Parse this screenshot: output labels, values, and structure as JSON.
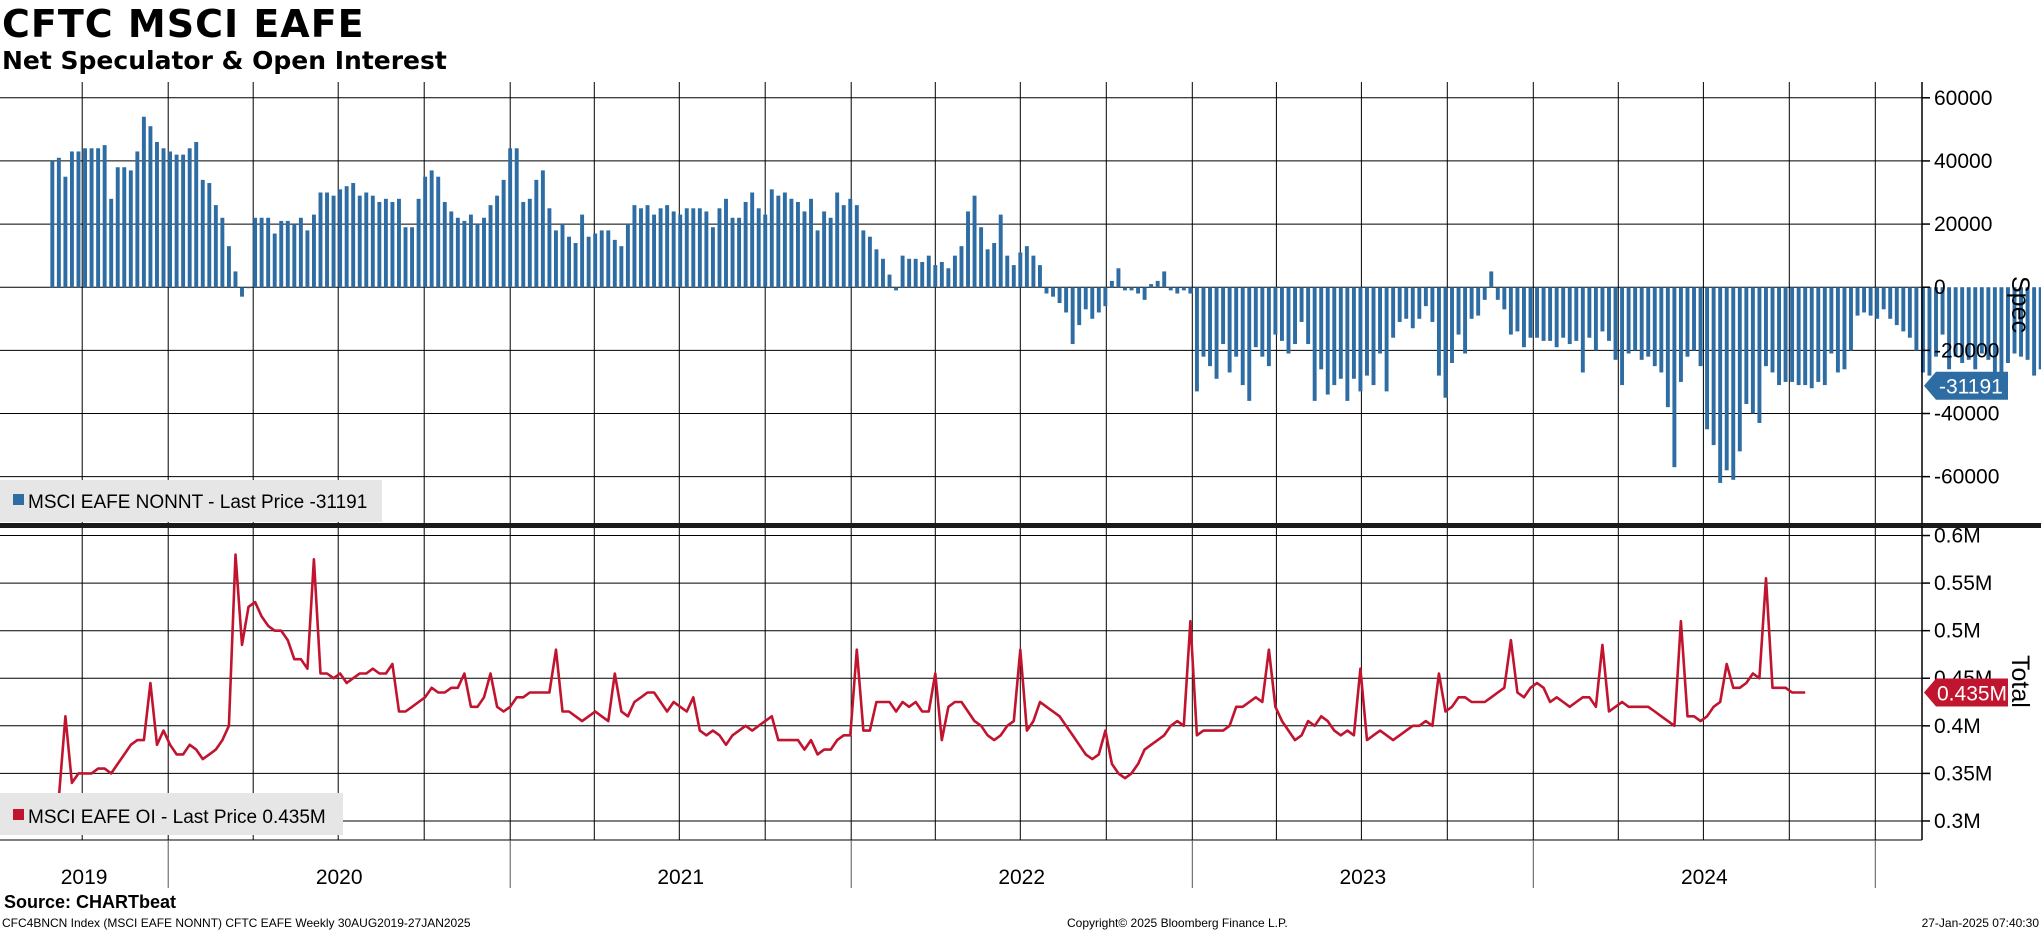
{
  "header": {
    "title": "CFTC MSCI EAFE",
    "subtitle": "Net Speculator & Open Interest"
  },
  "footer": {
    "source": "Source: CHARTbeat",
    "left": "CFC4BNCN Index (MSCI EAFE NONNT) CFTC EAFE  Weekly 30AUG2019-27JAN2025",
    "mid": "Copyright© 2025 Bloomberg Finance L.P.",
    "right": "27-Jan-2025 07:40:30"
  },
  "chart_data": [
    {
      "type": "bar",
      "axis_title": "Spec",
      "legend": "MSCI EAFE NONNT  - Last Price -31191",
      "last_value": -31191,
      "last_value_label": "-31191",
      "color": "#2e6da4",
      "ylim": [
        -75000,
        65000
      ],
      "yticks": [
        60000,
        40000,
        20000,
        0,
        -20000,
        -40000,
        -60000
      ],
      "ytick_labels": [
        "60000",
        "40000",
        "20000",
        "0",
        "-20000",
        "-40000",
        "-60000"
      ],
      "x_start": "2019-08-30",
      "x_end": "2025-01-27",
      "frequency": "weekly",
      "values": [
        40000,
        41000,
        35000,
        43000,
        43000,
        44000,
        44000,
        44000,
        45000,
        28000,
        38000,
        38000,
        37000,
        43000,
        54000,
        51000,
        46000,
        44000,
        43000,
        42000,
        42000,
        44000,
        46000,
        34000,
        33000,
        26000,
        22000,
        13000,
        5000,
        -3000,
        0,
        22000,
        22000,
        22000,
        17000,
        21000,
        21000,
        20000,
        22000,
        18000,
        23000,
        30000,
        30000,
        29000,
        31000,
        32000,
        33000,
        29000,
        30000,
        29000,
        27000,
        28000,
        27000,
        28000,
        19000,
        19000,
        28000,
        35000,
        37000,
        35000,
        27000,
        24000,
        22000,
        21000,
        23000,
        20000,
        22000,
        26000,
        29000,
        34000,
        44000,
        44000,
        27000,
        28000,
        34000,
        37000,
        25000,
        18000,
        20000,
        16000,
        14000,
        23000,
        16000,
        17000,
        18000,
        18000,
        15000,
        13000,
        20000,
        26000,
        25000,
        26000,
        23000,
        25000,
        26000,
        24000,
        23000,
        25000,
        25000,
        25000,
        24000,
        19000,
        25000,
        28000,
        22000,
        22000,
        27000,
        30000,
        25000,
        23000,
        31000,
        29000,
        30000,
        28000,
        27000,
        24000,
        28000,
        18000,
        24000,
        22000,
        30000,
        26000,
        28000,
        26000,
        18000,
        16000,
        12000,
        9000,
        4000,
        -1000,
        10000,
        9000,
        9000,
        8000,
        10000,
        7000,
        8000,
        6000,
        10000,
        13000,
        24000,
        29000,
        19000,
        12000,
        14000,
        23000,
        10000,
        7000,
        11000,
        13000,
        10000,
        7000,
        -2000,
        -3000,
        -5000,
        -8000,
        -18000,
        -12000,
        -7000,
        -10000,
        -8000,
        -6000,
        2000,
        6000,
        -1000,
        -1000,
        -2000,
        -4000,
        1000,
        2000,
        5000,
        -1000,
        -2000,
        -1000,
        -2000,
        -33000,
        -22000,
        -25000,
        -29000,
        -18000,
        -27000,
        -22000,
        -31000,
        -36000,
        -19000,
        -22000,
        -25000,
        -15000,
        -17000,
        -21000,
        -18000,
        -11000,
        -18000,
        -36000,
        -26000,
        -34000,
        -31000,
        -29000,
        -36000,
        -29000,
        -33000,
        -28000,
        -31000,
        -21000,
        -33000,
        -16000,
        -11000,
        -10000,
        -13000,
        -10000,
        -6000,
        -11000,
        -28000,
        -35000,
        -24000,
        -15000,
        -21000,
        -10000,
        -9000,
        -4000,
        5000,
        -4000,
        -7000,
        -15000,
        -14000,
        -19000,
        -16000,
        -16000,
        -17000,
        -17000,
        -19000,
        -16000,
        -18000,
        -17000,
        -27000,
        -16000,
        -20000,
        -14000,
        -17000,
        -23000,
        -31000,
        -21000,
        -20000,
        -23000,
        -22000,
        -25000,
        -27000,
        -38000,
        -57000,
        -30000,
        -22000,
        -20000,
        -25000,
        -45000,
        -50000,
        -62000,
        -58000,
        -61000,
        -52000,
        -37000,
        -40000,
        -43000,
        -25000,
        -27000,
        -31000,
        -30000,
        -30000,
        -31000,
        -31000,
        -32000,
        -30000,
        -31000,
        -21000,
        -27000,
        -26000,
        -20000,
        -9000,
        -8000,
        -9000,
        -10000,
        -7000,
        -10000,
        -12000,
        -14000,
        -16000,
        -20000,
        -27000,
        -28000,
        -22000,
        -15000,
        -26000,
        -22000,
        -24000,
        -23000,
        -26000,
        -21000,
        -23000,
        -28000,
        -27000,
        -24000,
        -21000,
        -22000,
        -23000,
        -28000,
        -26000,
        -28000,
        -29000,
        -31000,
        -30000,
        -38000,
        -38000,
        -31000,
        -27000,
        -35000,
        -41000,
        -32000,
        -25000,
        -27000,
        -29000,
        -32000,
        -35000,
        -33000,
        -36000,
        -36000,
        -48000,
        -32000,
        -31000,
        -32000,
        -31000,
        -28000,
        -32000,
        -31000,
        -29000,
        -27000,
        -27000,
        -31191
      ]
    },
    {
      "type": "line",
      "axis_title": "Total",
      "legend": "MSCI EAFE OI  - Last Price 0.435M",
      "last_value": 0.435,
      "last_value_label": "0.435M",
      "unit": "M",
      "color": "#c0142f",
      "ylim": [
        0.28,
        0.61
      ],
      "yticks": [
        0.6,
        0.55,
        0.5,
        0.45,
        0.4,
        0.35,
        0.3
      ],
      "ytick_labels": [
        "0.6M",
        "0.55M",
        "0.5M",
        "0.45M",
        "0.4M",
        "0.35M",
        "0.3M"
      ],
      "x_start": "2019-08-30",
      "x_end": "2025-01-27",
      "frequency": "weekly",
      "values": [
        0.325,
        0.325,
        0.41,
        0.34,
        0.35,
        0.35,
        0.35,
        0.355,
        0.355,
        0.35,
        0.36,
        0.37,
        0.38,
        0.385,
        0.385,
        0.445,
        0.38,
        0.395,
        0.38,
        0.37,
        0.37,
        0.38,
        0.375,
        0.365,
        0.37,
        0.375,
        0.385,
        0.4,
        0.58,
        0.485,
        0.525,
        0.53,
        0.515,
        0.505,
        0.5,
        0.5,
        0.49,
        0.47,
        0.47,
        0.46,
        0.575,
        0.455,
        0.455,
        0.45,
        0.455,
        0.445,
        0.45,
        0.455,
        0.455,
        0.46,
        0.455,
        0.455,
        0.465,
        0.415,
        0.415,
        0.42,
        0.425,
        0.43,
        0.44,
        0.435,
        0.435,
        0.44,
        0.44,
        0.455,
        0.42,
        0.42,
        0.43,
        0.455,
        0.42,
        0.415,
        0.42,
        0.43,
        0.43,
        0.435,
        0.435,
        0.435,
        0.435,
        0.48,
        0.415,
        0.415,
        0.41,
        0.405,
        0.41,
        0.415,
        0.41,
        0.405,
        0.455,
        0.415,
        0.41,
        0.425,
        0.43,
        0.435,
        0.435,
        0.425,
        0.415,
        0.425,
        0.42,
        0.415,
        0.43,
        0.395,
        0.39,
        0.395,
        0.39,
        0.38,
        0.39,
        0.395,
        0.4,
        0.395,
        0.4,
        0.405,
        0.41,
        0.385,
        0.385,
        0.385,
        0.385,
        0.375,
        0.385,
        0.37,
        0.375,
        0.375,
        0.385,
        0.39,
        0.39,
        0.48,
        0.395,
        0.395,
        0.425,
        0.425,
        0.425,
        0.415,
        0.425,
        0.42,
        0.425,
        0.415,
        0.415,
        0.455,
        0.385,
        0.42,
        0.425,
        0.425,
        0.415,
        0.405,
        0.4,
        0.39,
        0.385,
        0.39,
        0.4,
        0.405,
        0.48,
        0.395,
        0.405,
        0.425,
        0.42,
        0.415,
        0.41,
        0.4,
        0.39,
        0.38,
        0.37,
        0.365,
        0.37,
        0.395,
        0.36,
        0.35,
        0.345,
        0.35,
        0.36,
        0.375,
        0.38,
        0.385,
        0.39,
        0.4,
        0.405,
        0.4,
        0.51,
        0.39,
        0.395,
        0.395,
        0.395,
        0.395,
        0.4,
        0.42,
        0.42,
        0.425,
        0.43,
        0.425,
        0.48,
        0.42,
        0.405,
        0.395,
        0.385,
        0.39,
        0.405,
        0.4,
        0.41,
        0.405,
        0.395,
        0.39,
        0.395,
        0.39,
        0.46,
        0.385,
        0.39,
        0.395,
        0.39,
        0.385,
        0.39,
        0.395,
        0.4,
        0.4,
        0.405,
        0.4,
        0.455,
        0.415,
        0.42,
        0.43,
        0.43,
        0.425,
        0.425,
        0.425,
        0.43,
        0.435,
        0.44,
        0.49,
        0.435,
        0.43,
        0.44,
        0.445,
        0.44,
        0.425,
        0.43,
        0.425,
        0.42,
        0.425,
        0.43,
        0.43,
        0.42,
        0.485,
        0.415,
        0.42,
        0.425,
        0.42,
        0.42,
        0.42,
        0.42,
        0.415,
        0.41,
        0.405,
        0.4,
        0.51,
        0.41,
        0.41,
        0.405,
        0.41,
        0.42,
        0.425,
        0.465,
        0.44,
        0.44,
        0.445,
        0.455,
        0.45,
        0.555,
        0.44,
        0.44,
        0.44,
        0.435,
        0.435,
        0.435
      ]
    }
  ],
  "xaxis": {
    "year_labels": [
      "2019",
      "2020",
      "2021",
      "2022",
      "2023",
      "2024"
    ]
  }
}
